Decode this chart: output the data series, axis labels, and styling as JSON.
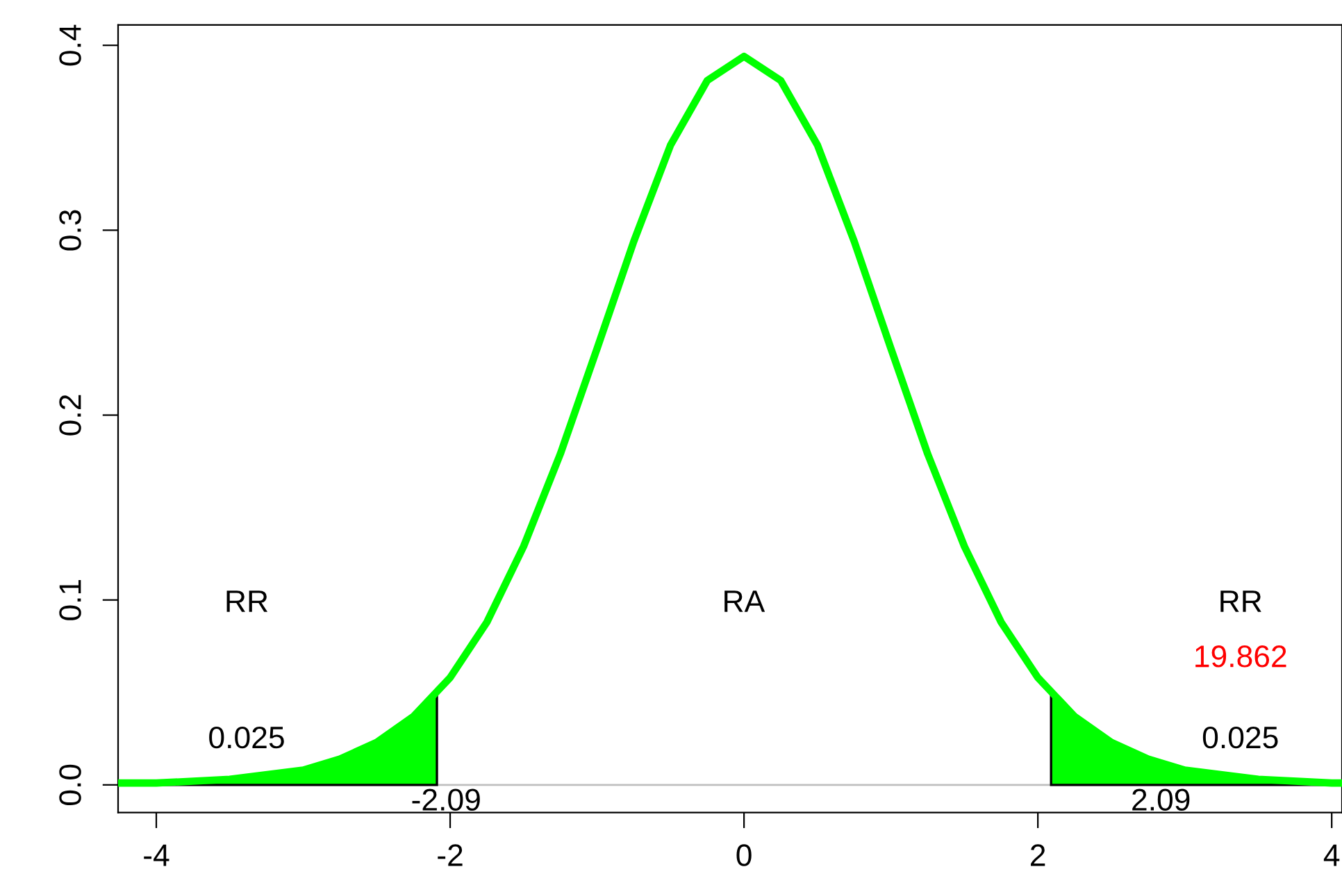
{
  "chart_data": {
    "type": "line",
    "xlim": [
      -4.26,
      4.07
    ],
    "ylim": [
      -0.015,
      0.411
    ],
    "xticks": [
      -4,
      -2,
      0,
      2,
      4
    ],
    "yticks": [
      {
        "value": 0,
        "label": "0.0"
      },
      0.1,
      0.2,
      0.3,
      0.4
    ],
    "grid": false,
    "marker": "none",
    "line_style": "solid",
    "series": [
      {
        "type": "area",
        "color": "#00ff00",
        "x": [
          -4.26,
          -4,
          -3.5,
          -3,
          -2.75,
          -2.5,
          -2.25,
          -2.09
        ],
        "values": [
          0.001,
          0.001,
          0.003,
          0.008,
          0.014,
          0.023,
          0.037,
          0.05
        ]
      },
      {
        "type": "area",
        "color": "#00ff00",
        "x": [
          2.09,
          2.25,
          2.5,
          2.75,
          3,
          3.5,
          4,
          4.07
        ],
        "values": [
          0.05,
          0.037,
          0.023,
          0.014,
          0.008,
          0.003,
          0.001,
          0.001
        ]
      },
      {
        "color": "#00ff00",
        "x": [
          -4.26,
          -4,
          -3.5,
          -3,
          -2.75,
          -2.5,
          -2.25,
          -2,
          -1.75,
          -1.5,
          -1.25,
          -1,
          -0.75,
          -0.5,
          -0.25,
          0,
          0.25,
          0.5,
          0.75,
          1,
          1.25,
          1.5,
          1.75,
          2,
          2.25,
          2.5,
          2.75,
          3,
          3.5,
          4,
          4.07
        ],
        "values": [
          0.001,
          0.001,
          0.003,
          0.008,
          0.014,
          0.023,
          0.037,
          0.058,
          0.088,
          0.129,
          0.179,
          0.236,
          0.294,
          0.346,
          0.381,
          0.394,
          0.381,
          0.346,
          0.294,
          0.236,
          0.179,
          0.129,
          0.088,
          0.058,
          0.037,
          0.023,
          0.014,
          0.008,
          0.003,
          0.001,
          0.001
        ]
      }
    ],
    "ref_lines": [
      {
        "axis": "y",
        "value": 0,
        "color": "#bebebe"
      }
    ],
    "annotations": [
      "RR",
      "RA",
      "RR",
      "19.862",
      "0.025",
      "0.025",
      "-2.09",
      "2.09"
    ]
  }
}
